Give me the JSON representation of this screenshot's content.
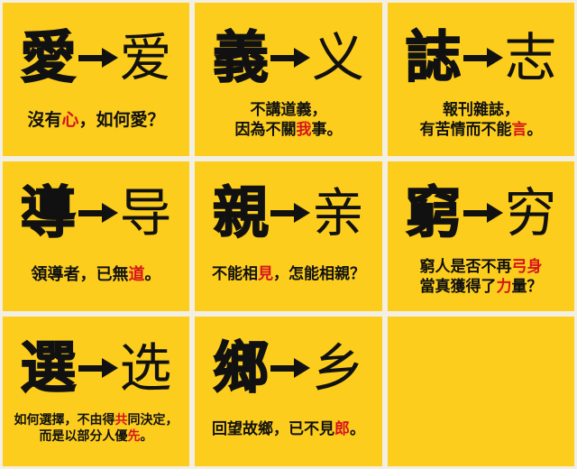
{
  "cells": [
    {
      "traditional": "愛",
      "simplified": "爱",
      "lines": [
        [
          {
            "t": "沒有",
            "red": false
          },
          {
            "t": "心",
            "red": true
          },
          {
            "t": "，如何愛？",
            "red": false
          }
        ]
      ]
    },
    {
      "traditional": "義",
      "simplified": "义",
      "lines": [
        [
          {
            "t": "不講道義，",
            "red": false
          }
        ],
        [
          {
            "t": "因為不關",
            "red": false
          },
          {
            "t": "我",
            "red": true
          },
          {
            "t": "事。",
            "red": false
          }
        ]
      ]
    },
    {
      "traditional": "誌",
      "simplified": "志",
      "lines": [
        [
          {
            "t": "報刊雜誌，",
            "red": false
          }
        ],
        [
          {
            "t": "有苦情而不能",
            "red": false
          },
          {
            "t": "言",
            "red": true
          },
          {
            "t": "。",
            "red": false
          }
        ]
      ]
    },
    {
      "traditional": "導",
      "simplified": "导",
      "lines": [
        [
          {
            "t": "領導者，已無",
            "red": false
          },
          {
            "t": "道",
            "red": true
          },
          {
            "t": "。",
            "red": false
          }
        ]
      ]
    },
    {
      "traditional": "親",
      "simplified": "亲",
      "lines": [
        [
          {
            "t": "不能相",
            "red": false
          },
          {
            "t": "見",
            "red": true
          },
          {
            "t": "，怎能相親？",
            "red": false
          }
        ]
      ]
    },
    {
      "traditional": "窮",
      "simplified": "穷",
      "lines": [
        [
          {
            "t": "窮人是否不再",
            "red": false
          },
          {
            "t": "弓身",
            "red": true
          }
        ],
        [
          {
            "t": "當真獲得了",
            "red": false
          },
          {
            "t": "力",
            "red": true
          },
          {
            "t": "量？",
            "red": false
          }
        ]
      ]
    },
    {
      "traditional": "選",
      "simplified": "选",
      "lines": [
        [
          {
            "t": "如何選擇，不由得",
            "red": false
          },
          {
            "t": "共",
            "red": true
          },
          {
            "t": "同決定，",
            "red": false
          }
        ],
        [
          {
            "t": "而是以部分人優",
            "red": false
          },
          {
            "t": "先",
            "red": true
          },
          {
            "t": "。",
            "red": false
          }
        ]
      ]
    },
    {
      "traditional": "鄉",
      "simplified": "乡",
      "lines": [
        [
          {
            "t": "回望故鄉，已不見",
            "red": false
          },
          {
            "t": "郎",
            "red": true
          },
          {
            "t": "。",
            "red": false
          }
        ]
      ]
    }
  ]
}
